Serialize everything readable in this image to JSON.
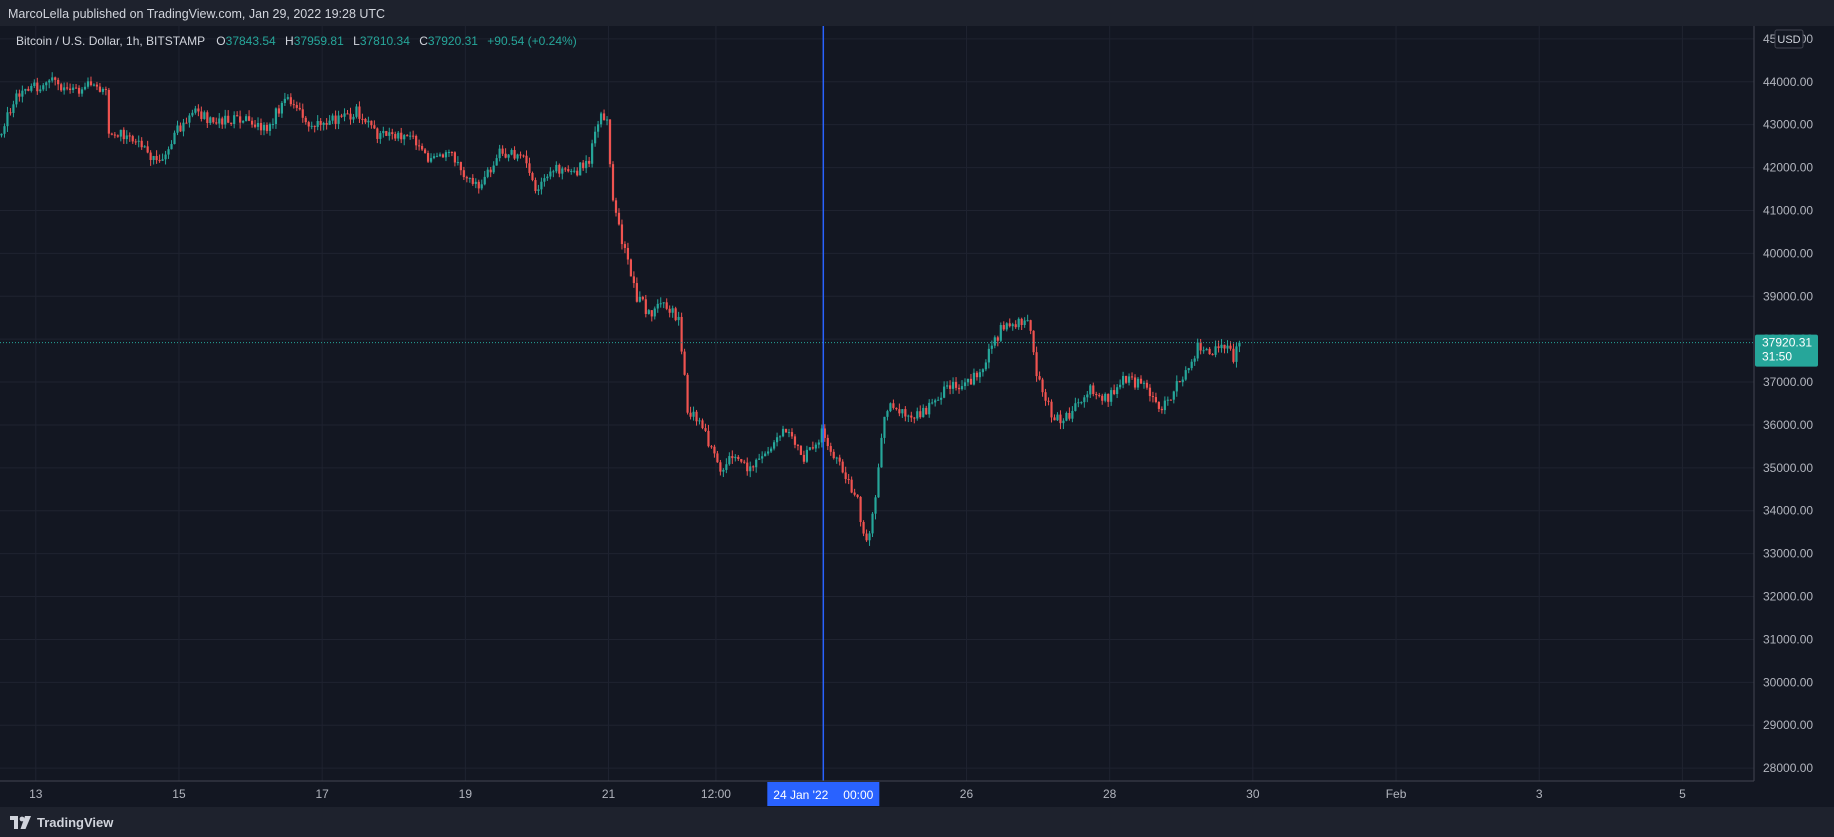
{
  "header": {
    "published_text": "MarcoLella published on TradingView.com, Jan 29, 2022 19:28 UTC"
  },
  "legend": {
    "symbol": "Bitcoin / U.S. Dollar, 1h, BITSTAMP",
    "open_label": "O",
    "open": "37843.54",
    "high_label": "H",
    "high": "37959.81",
    "low_label": "L",
    "low": "37810.34",
    "close_label": "C",
    "close": "37920.31",
    "change": "+90.54 (+0.24%)"
  },
  "currency_label": "USD",
  "price_tag": {
    "price": "37920.31",
    "countdown": "31:50"
  },
  "crosshair_label": {
    "date": "24 Jan '22",
    "time": "00:00"
  },
  "footer": {
    "brand": "TradingView"
  },
  "colors": {
    "background": "#131722",
    "up": "#26a69a",
    "down": "#ef5350",
    "crosshair": "#2962ff",
    "text": "#d1d4dc"
  },
  "chart_data": {
    "type": "candlestick",
    "interval": "1h",
    "ylim": [
      27700,
      45300
    ],
    "x_start": "2022-01-12T12:00",
    "x_end": "2022-02-06T00:00",
    "y_ticks": [
      28000,
      29000,
      30000,
      31000,
      32000,
      33000,
      34000,
      35000,
      36000,
      37000,
      38000,
      39000,
      40000,
      41000,
      42000,
      43000,
      44000,
      45000
    ],
    "y_tick_labels": [
      "28000.00",
      "29000.00",
      "30000.00",
      "31000.00",
      "32000.00",
      "33000.00",
      "34000.00",
      "35000.00",
      "36000.00",
      "37000.00",
      "38000.00",
      "39000.00",
      "40000.00",
      "41000.00",
      "42000.00",
      "43000.00",
      "44000.00",
      "45000.00"
    ],
    "x_ticks": [
      {
        "label": "13",
        "t": "2022-01-13T00:00"
      },
      {
        "label": "15",
        "t": "2022-01-15T00:00"
      },
      {
        "label": "17",
        "t": "2022-01-17T00:00"
      },
      {
        "label": "19",
        "t": "2022-01-19T00:00"
      },
      {
        "label": "21",
        "t": "2022-01-21T00:00"
      },
      {
        "label": "12:00",
        "t": "2022-01-22T12:00"
      },
      {
        "label": "26",
        "t": "2022-01-26T00:00"
      },
      {
        "label": "28",
        "t": "2022-01-28T00:00"
      },
      {
        "label": "30",
        "t": "2022-01-30T00:00"
      },
      {
        "label": "Feb",
        "t": "2022-02-01T00:00"
      },
      {
        "label": "3",
        "t": "2022-02-03T00:00"
      },
      {
        "label": "5",
        "t": "2022-02-05T00:00"
      }
    ],
    "crosshair_time": "2022-01-24T00:00",
    "last_price": 37920.31,
    "price_path": [
      [
        "2022-01-12T12:00",
        42750
      ],
      [
        "2022-01-12T18:00",
        43700
      ],
      [
        "2022-01-13T06:00",
        44050
      ],
      [
        "2022-01-13T12:00",
        43750
      ],
      [
        "2022-01-13T18:00",
        43950
      ],
      [
        "2022-01-14T00:00",
        43800
      ],
      [
        "2022-01-14T01:00",
        42900
      ],
      [
        "2022-01-14T08:00",
        42700
      ],
      [
        "2022-01-14T18:00",
        42100
      ],
      [
        "2022-01-15T00:00",
        42900
      ],
      [
        "2022-01-15T06:00",
        43300
      ],
      [
        "2022-01-15T12:00",
        43050
      ],
      [
        "2022-01-15T20:00",
        43150
      ],
      [
        "2022-01-16T06:00",
        42900
      ],
      [
        "2022-01-16T12:00",
        43600
      ],
      [
        "2022-01-16T20:00",
        43050
      ],
      [
        "2022-01-17T06:00",
        43100
      ],
      [
        "2022-01-17T12:00",
        43300
      ],
      [
        "2022-01-17T18:00",
        42800
      ],
      [
        "2022-01-18T06:00",
        42750
      ],
      [
        "2022-01-18T12:00",
        42150
      ],
      [
        "2022-01-18T20:00",
        42400
      ],
      [
        "2022-01-19T00:00",
        41700
      ],
      [
        "2022-01-19T06:00",
        41600
      ],
      [
        "2022-01-19T12:00",
        42400
      ],
      [
        "2022-01-19T20:00",
        42200
      ],
      [
        "2022-01-20T00:00",
        41400
      ],
      [
        "2022-01-20T06:00",
        42000
      ],
      [
        "2022-01-20T12:00",
        41800
      ],
      [
        "2022-01-20T18:00",
        42200
      ],
      [
        "2022-01-20T22:00",
        43300
      ],
      [
        "2022-01-21T00:00",
        43000
      ],
      [
        "2022-01-21T02:00",
        41200
      ],
      [
        "2022-01-21T06:00",
        40000
      ],
      [
        "2022-01-21T10:00",
        39000
      ],
      [
        "2022-01-21T14:00",
        38600
      ],
      [
        "2022-01-21T18:00",
        38800
      ],
      [
        "2022-01-22T00:00",
        38500
      ],
      [
        "2022-01-22T03:00",
        36400
      ],
      [
        "2022-01-22T08:00",
        35900
      ],
      [
        "2022-01-22T14:00",
        35000
      ],
      [
        "2022-01-22T18:00",
        35200
      ],
      [
        "2022-01-23T00:00",
        35000
      ],
      [
        "2022-01-23T06:00",
        35500
      ],
      [
        "2022-01-23T12:00",
        35900
      ],
      [
        "2022-01-23T18:00",
        35200
      ],
      [
        "2022-01-24T00:00",
        35800
      ],
      [
        "2022-01-24T06:00",
        35100
      ],
      [
        "2022-01-24T12:00",
        34200
      ],
      [
        "2022-01-24T15:00",
        33200
      ],
      [
        "2022-01-24T18:00",
        34200
      ],
      [
        "2022-01-24T21:00",
        36300
      ],
      [
        "2022-01-25T00:00",
        36500
      ],
      [
        "2022-01-25T06:00",
        36100
      ],
      [
        "2022-01-25T12:00",
        36400
      ],
      [
        "2022-01-25T18:00",
        36900
      ],
      [
        "2022-01-26T00:00",
        36900
      ],
      [
        "2022-01-26T06:00",
        37400
      ],
      [
        "2022-01-26T12:00",
        38200
      ],
      [
        "2022-01-26T18:00",
        38400
      ],
      [
        "2022-01-26T21:00",
        38500
      ],
      [
        "2022-01-27T00:00",
        37200
      ],
      [
        "2022-01-27T06:00",
        36100
      ],
      [
        "2022-01-27T12:00",
        36300
      ],
      [
        "2022-01-27T18:00",
        36800
      ],
      [
        "2022-01-28T00:00",
        36600
      ],
      [
        "2022-01-28T06:00",
        37100
      ],
      [
        "2022-01-28T12:00",
        36900
      ],
      [
        "2022-01-28T18:00",
        36400
      ],
      [
        "2022-01-29T00:00",
        37000
      ],
      [
        "2022-01-29T06:00",
        37800
      ],
      [
        "2022-01-29T12:00",
        37750
      ],
      [
        "2022-01-29T16:00",
        37950
      ],
      [
        "2022-01-29T18:00",
        37600
      ],
      [
        "2022-01-29T19:00",
        37920
      ]
    ]
  }
}
